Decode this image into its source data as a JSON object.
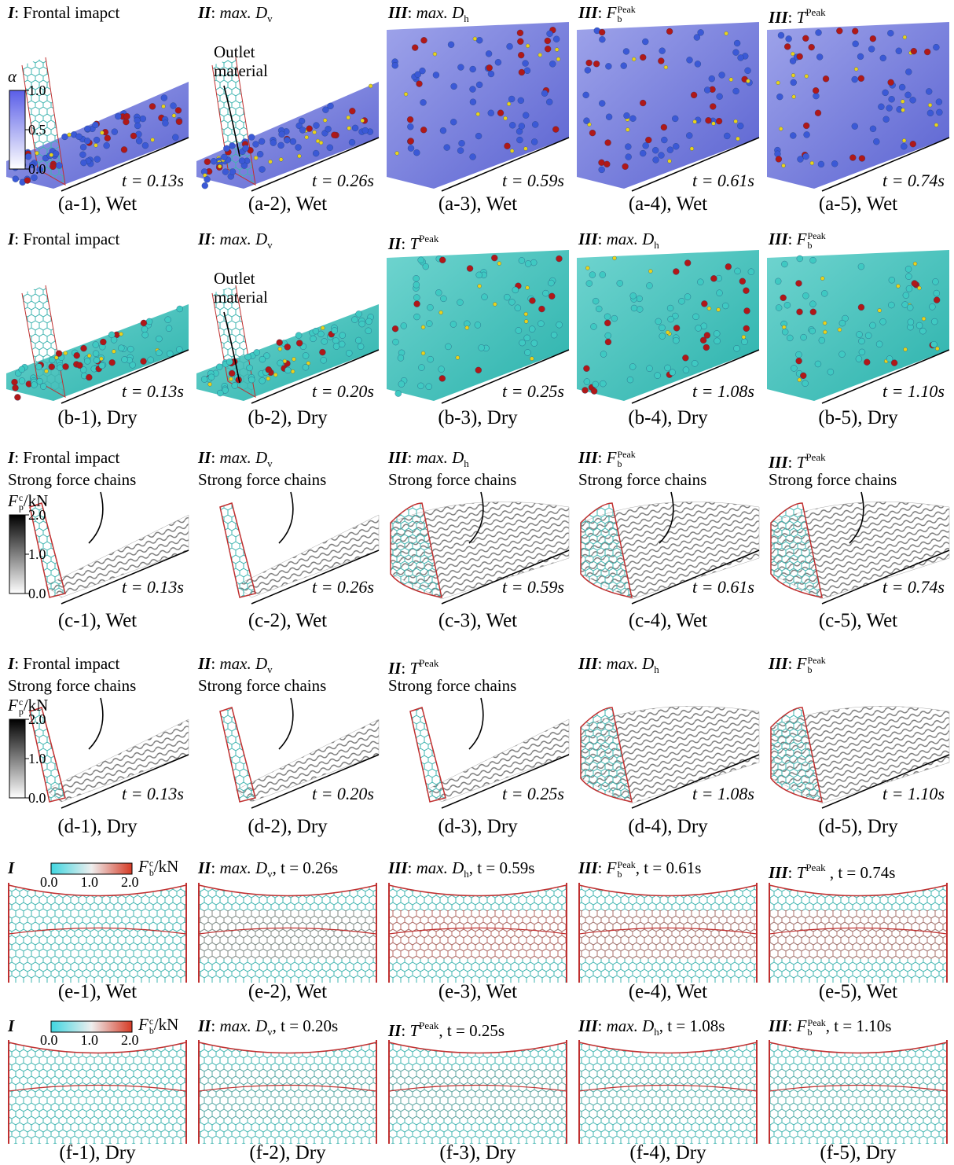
{
  "rows": [
    {
      "colorbar": {
        "symbol": "α",
        "ticks": [
          "1.0",
          "0.5",
          "0.0"
        ]
      },
      "panels": [
        {
          "stage": "I",
          "heading": [
            ": Frontal imapct"
          ],
          "time": "t = 0.13s",
          "caption": "(a-1), Wet"
        },
        {
          "stage": "II",
          "heading": [
            ": ",
            {
              "base": "max. D",
              "sub": "v"
            }
          ],
          "note": "Outlet material",
          "time": "t = 0.26s",
          "caption": "(a-2), Wet"
        },
        {
          "stage": "III",
          "heading": [
            ": ",
            {
              "base": "max. D",
              "sub": "h"
            }
          ],
          "time": "t = 0.59s",
          "caption": "(a-3), Wet"
        },
        {
          "stage": "III",
          "heading": [
            ": ",
            {
              "base": "F",
              "sub": "b",
              "sup": "Peak"
            }
          ],
          "time": "t = 0.61s",
          "caption": "(a-4), Wet"
        },
        {
          "stage": "III",
          "heading": [
            ": ",
            {
              "base": "T",
              "sup": "Peak"
            }
          ],
          "time": "t = 0.74s",
          "caption": "(a-5), Wet"
        }
      ]
    },
    {
      "panels": [
        {
          "stage": "I",
          "heading": [
            ": Frontal impact"
          ],
          "time": "t = 0.13s",
          "caption": "(b-1), Dry"
        },
        {
          "stage": "II",
          "heading": [
            ": ",
            {
              "base": "max. D",
              "sub": "v"
            }
          ],
          "note": "Outlet material",
          "time": "t = 0.20s",
          "caption": "(b-2), Dry"
        },
        {
          "stage": "II",
          "heading": [
            ": ",
            {
              "base": "T",
              "sup": "Peak"
            }
          ],
          "time": "t = 0.25s",
          "caption": "(b-3), Dry"
        },
        {
          "stage": "III",
          "heading": [
            ": ",
            {
              "base": "max. D",
              "sub": "h"
            }
          ],
          "time": "t = 1.08s",
          "caption": "(b-4), Dry"
        },
        {
          "stage": "III",
          "heading": [
            ": ",
            {
              "base": "F",
              "sub": "b",
              "sup": "Peak"
            }
          ],
          "time": "t = 1.10s",
          "caption": "(b-5), Dry"
        }
      ]
    },
    {
      "colorbar": {
        "symbol": {
          "base": "F",
          "sub": "p",
          "sup": "c"
        },
        "unit": "/kN",
        "ticks": [
          "2.0",
          "1.0",
          "0.0"
        ]
      },
      "panels": [
        {
          "stage": "I",
          "heading": [
            ": Frontal impact"
          ],
          "note": "Strong force chains",
          "time": "t = 0.13s",
          "caption": "(c-1), Wet"
        },
        {
          "stage": "II",
          "heading": [
            ": ",
            {
              "base": "max. D",
              "sub": "v"
            }
          ],
          "note": "Strong force chains",
          "time": "t = 0.26s",
          "caption": "(c-2), Wet"
        },
        {
          "stage": "III",
          "heading": [
            ": ",
            {
              "base": "max. D",
              "sub": "h"
            }
          ],
          "note": "Strong force chains",
          "time": "t = 0.59s",
          "caption": "(c-3), Wet"
        },
        {
          "stage": "III",
          "heading": [
            ": ",
            {
              "base": "F",
              "sub": "b",
              "sup": "Peak"
            }
          ],
          "note": "Strong force chains",
          "time": "t = 0.61s",
          "caption": "(c-4), Wet"
        },
        {
          "stage": "III",
          "heading": [
            ": ",
            {
              "base": "T",
              "sup": "Peak"
            }
          ],
          "note": "Strong force chains",
          "time": "t = 0.74s",
          "caption": "(c-5), Wet"
        }
      ]
    },
    {
      "colorbar": {
        "symbol": {
          "base": "F",
          "sub": "p",
          "sup": "c"
        },
        "unit": "/kN",
        "ticks": [
          "2.0",
          "1.0",
          "0.0"
        ]
      },
      "panels": [
        {
          "stage": "I",
          "heading": [
            ": Frontal impact"
          ],
          "note": "Strong force chains",
          "time": "t = 0.13s",
          "caption": "(d-1), Dry"
        },
        {
          "stage": "II",
          "heading": [
            ": ",
            {
              "base": "max. D",
              "sub": "v"
            }
          ],
          "note": "Strong force chains",
          "time": "t = 0.20s",
          "caption": "(d-2), Dry"
        },
        {
          "stage": "II",
          "heading": [
            ": ",
            {
              "base": "T",
              "sup": "Peak"
            }
          ],
          "note": "Strong force chains",
          "time": "t = 0.25s",
          "caption": "(d-3), Dry"
        },
        {
          "stage": "III",
          "heading": [
            ": ",
            {
              "base": "max. D",
              "sub": "h"
            }
          ],
          "time": "t = 1.08s",
          "caption": "(d-4), Dry"
        },
        {
          "stage": "III",
          "heading": [
            ": ",
            {
              "base": "F",
              "sub": "b",
              "sup": "Peak"
            }
          ],
          "time": "t = 1.10s",
          "caption": "(d-5), Dry"
        }
      ]
    },
    {
      "colorbar": {
        "symbol": {
          "base": "F",
          "sub": "b",
          "sup": "c"
        },
        "unit": "/kN",
        "ticks": [
          "0.0",
          "1.0",
          "2.0"
        ]
      },
      "panels": [
        {
          "stage": "I",
          "heading": [],
          "caption": "(e-1), Wet"
        },
        {
          "stage": "II",
          "heading": [
            ": ",
            {
              "base": "max. D",
              "sub": "v"
            },
            ", t = 0.26s"
          ],
          "caption": "(e-2), Wet"
        },
        {
          "stage": "III",
          "heading": [
            ": ",
            {
              "base": "max. D",
              "sub": "h"
            },
            ", t = 0.59s"
          ],
          "caption": "(e-3), Wet"
        },
        {
          "stage": "III",
          "heading": [
            ": ",
            {
              "base": "F",
              "sub": "b",
              "sup": "Peak"
            },
            ", t = 0.61s"
          ],
          "caption": "(e-4), Wet"
        },
        {
          "stage": "III",
          "heading": [
            ": ",
            {
              "base": "T",
              "sup": "Peak"
            },
            " , t = 0.74s"
          ],
          "caption": "(e-5), Wet"
        }
      ]
    },
    {
      "colorbar": {
        "symbol": {
          "base": "F",
          "sub": "b",
          "sup": "c"
        },
        "unit": "/kN",
        "ticks": [
          "0.0",
          "1.0",
          "2.0"
        ]
      },
      "panels": [
        {
          "stage": "I",
          "heading": [],
          "caption": "(f-1), Dry"
        },
        {
          "stage": "II",
          "heading": [
            ": ",
            {
              "base": "max. D",
              "sub": "v"
            },
            ", t = 0.20s"
          ],
          "caption": "(f-2), Dry"
        },
        {
          "stage": "II",
          "heading": [
            ": ",
            {
              "base": "T",
              "sup": "Peak"
            },
            ", t = 0.25s"
          ],
          "caption": "(f-3), Dry"
        },
        {
          "stage": "III",
          "heading": [
            ": ",
            {
              "base": "max. D",
              "sub": "h"
            },
            ", t = 1.08s"
          ],
          "caption": "(f-4), Dry"
        },
        {
          "stage": "III",
          "heading": [
            ": ",
            {
              "base": "F",
              "sub": "b",
              "sup": "Peak"
            },
            ", t = 1.10s"
          ],
          "caption": "(f-5), Dry"
        }
      ]
    }
  ]
}
